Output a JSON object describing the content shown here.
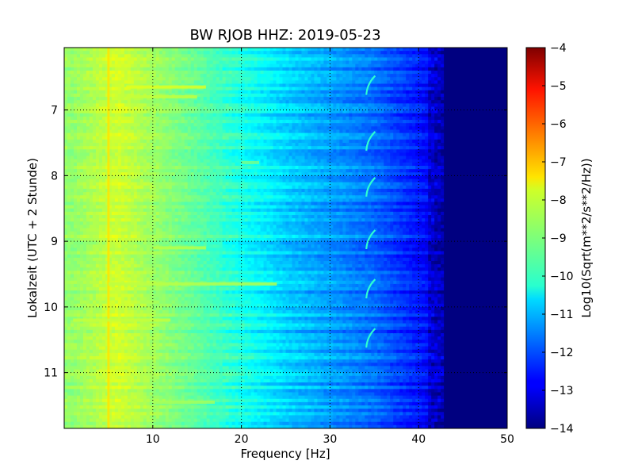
{
  "chart_data": {
    "type": "heatmap",
    "title": "BW RJOB HHZ: 2019-05-23",
    "xlabel": "Frequency [Hz]",
    "ylabel": "Lokalzeit (UTC + 2 Stunde)",
    "xlim": [
      0,
      50
    ],
    "ylim": [
      6.05,
      11.85
    ],
    "y_inverted": true,
    "x_ticks": [
      10,
      20,
      30,
      40,
      50
    ],
    "y_ticks": [
      7,
      8,
      9,
      10,
      11
    ],
    "grid": true,
    "grid_style": "dotted",
    "colormap": "jet",
    "colorbar": {
      "label": "Log10(Sqrt(m**2/s**2/Hz))",
      "range": [
        -14,
        -4
      ],
      "ticks": [
        -4,
        -5,
        -6,
        -7,
        -8,
        -9,
        -10,
        -11,
        -12,
        -13,
        -14
      ]
    },
    "description_of_values": [
      {
        "freq_range": [
          0,
          2
        ],
        "level": -8.8
      },
      {
        "freq_range": [
          2,
          10
        ],
        "level": -8.2
      },
      {
        "freq_range": [
          10,
          20
        ],
        "level": -9.3
      },
      {
        "freq_range": [
          20,
          30
        ],
        "level": -10.7
      },
      {
        "freq_range": [
          30,
          40
        ],
        "level": -11.7
      },
      {
        "freq_range": [
          40,
          43
        ],
        "level": -12.8
      },
      {
        "freq_range": [
          43,
          50
        ],
        "level": -14
      }
    ],
    "features": [
      {
        "type": "vertical_line",
        "freq": 5,
        "time_range": [
          6.05,
          11.85
        ],
        "level": -7.5
      },
      {
        "type": "horizontal_band",
        "time": 6.65,
        "freq_range": [
          7,
          16
        ],
        "level": -8.0
      },
      {
        "type": "horizontal_band",
        "time": 6.8,
        "freq_range": [
          7,
          15
        ],
        "level": -8.3
      },
      {
        "type": "horizontal_band",
        "time": 7.8,
        "freq_range": [
          20,
          22
        ],
        "level": -9.0
      },
      {
        "type": "horizontal_band",
        "time": 9.1,
        "freq_range": [
          10,
          16
        ],
        "level": -8.4
      },
      {
        "type": "horizontal_band",
        "time": 9.65,
        "freq_range": [
          5,
          24
        ],
        "level": -8.4
      },
      {
        "type": "horizontal_band",
        "time": 10.2,
        "freq_range": [
          1,
          12
        ],
        "level": -8.3
      },
      {
        "type": "horizontal_band",
        "time": 11.45,
        "freq_range": [
          10,
          17
        ],
        "level": -8.6
      },
      {
        "type": "chirp",
        "freq": 34.5,
        "times": [
          6.6,
          7.45,
          8.15,
          8.95,
          9.7,
          10.45
        ]
      }
    ]
  }
}
